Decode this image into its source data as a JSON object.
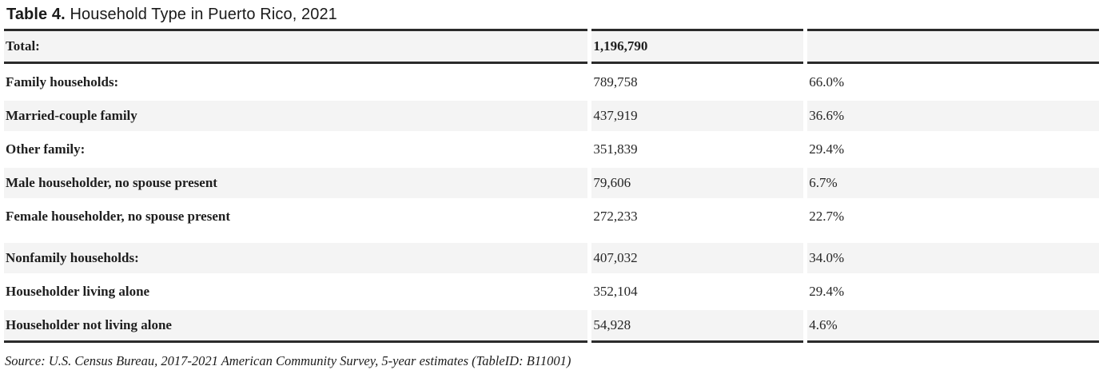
{
  "title": {
    "prefix": "Table 4.",
    "rest": " Household Type in Puerto Rico, 2021"
  },
  "table": {
    "rows": [
      {
        "label": "Total:",
        "value": "1,196,790",
        "percent": ""
      },
      {
        "label": "Family households:",
        "value": "789,758",
        "percent": "66.0%"
      },
      {
        "label": "Married-couple family",
        "value": "437,919",
        "percent": "36.6%"
      },
      {
        "label": "Other family:",
        "value": "351,839",
        "percent": "29.4%"
      },
      {
        "label": "Male householder, no spouse present",
        "value": "79,606",
        "percent": "6.7%"
      },
      {
        "label": "Female householder, no spouse present",
        "value": "272,233",
        "percent": "22.7%"
      },
      {
        "label": "Nonfamily households:",
        "value": "407,032",
        "percent": "34.0%"
      },
      {
        "label": "Householder living alone",
        "value": "352,104",
        "percent": "29.4%"
      },
      {
        "label": "Householder not living alone",
        "value": "54,928",
        "percent": "4.6%"
      }
    ]
  },
  "source": "Source: U.S. Census Bureau, 2017-2021 American Community Survey, 5-year estimates (TableID: B11001)",
  "colors": {
    "border": "#2b2b2b",
    "shaded_row": "#f4f4f4",
    "text": "#1e1e1e"
  }
}
